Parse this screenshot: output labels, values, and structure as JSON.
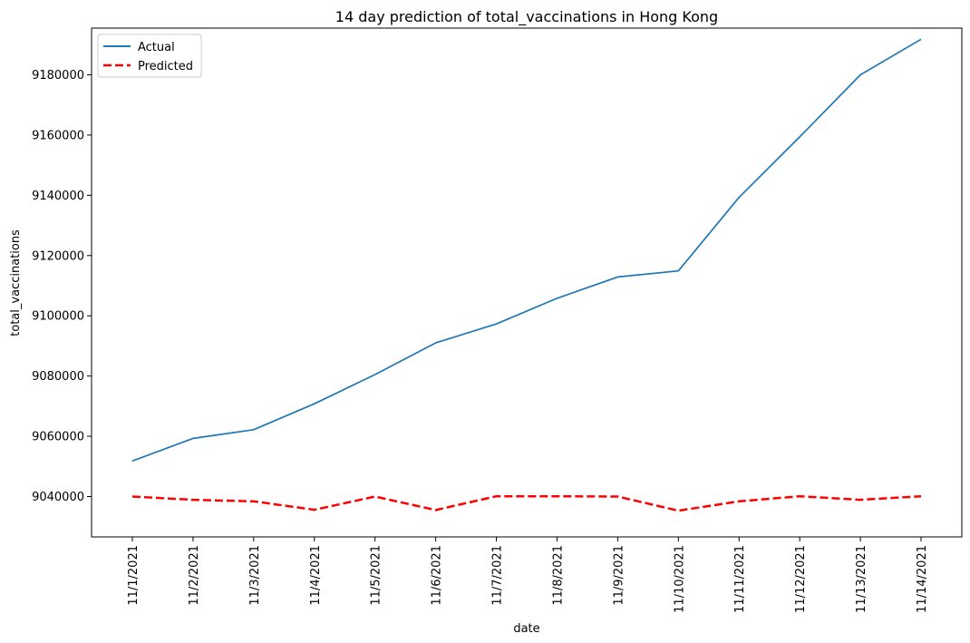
{
  "chart_data": {
    "type": "line",
    "title": "14 day prediction of total_vaccinations in Hong Kong",
    "xlabel": "date",
    "ylabel": "total_vaccinations",
    "categories": [
      "11/1/2021",
      "11/2/2021",
      "11/3/2021",
      "11/4/2021",
      "11/5/2021",
      "11/6/2021",
      "11/7/2021",
      "11/8/2021",
      "11/9/2021",
      "11/10/2021",
      "11/11/2021",
      "11/12/2021",
      "11/13/2021",
      "11/14/2021"
    ],
    "ylim": [
      9026600,
      9195500
    ],
    "yticks": [
      9040000,
      9060000,
      9080000,
      9100000,
      9120000,
      9140000,
      9160000,
      9180000
    ],
    "ytick_labels": [
      "9040000",
      "9060000",
      "9080000",
      "9100000",
      "9120000",
      "9140000",
      "9160000",
      "9180000"
    ],
    "grid": false,
    "legend_position": "top-left",
    "series": [
      {
        "name": "Actual",
        "color": "#1f77b4",
        "style": "solid",
        "values": [
          9051800,
          9059300,
          9062200,
          9070800,
          9080500,
          9091000,
          9097300,
          9105800,
          9112900,
          9114900,
          9139300,
          9159400,
          9180000,
          9191800
        ]
      },
      {
        "name": "Predicted",
        "color": "#ff0000",
        "style": "dashed",
        "values": [
          9040000,
          9038900,
          9038400,
          9035600,
          9040000,
          9035500,
          9040100,
          9040100,
          9040000,
          9035300,
          9038400,
          9040100,
          9038900,
          9040100
        ]
      }
    ]
  }
}
